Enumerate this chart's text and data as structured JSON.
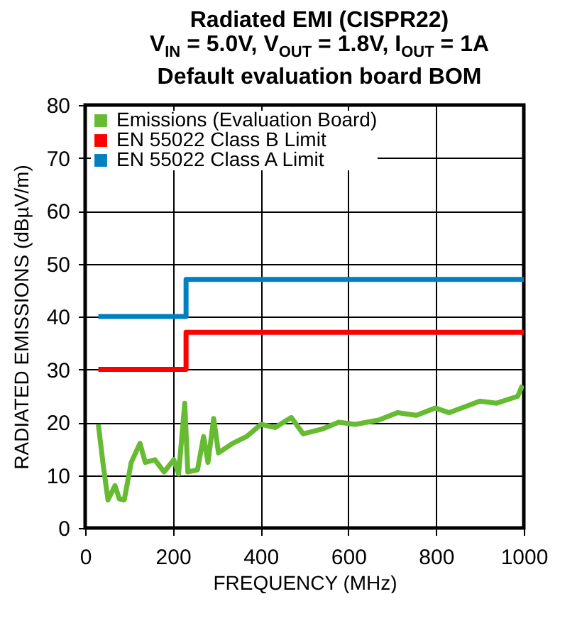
{
  "chart_data": {
    "type": "line",
    "title": "Radiated EMI (CISPR22)\nV$_{IN}$ = 5.0V, V$_{OUT}$ = 1.8V, I$_{OUT}$ = 1A\nDefault evaluation board BOM",
    "xlabel": "FREQUENCY (MHz)",
    "ylabel": "RADIATED EMISSIONS (dBµV/m)",
    "xlim": [
      0,
      1000
    ],
    "xticks": [
      0,
      200,
      400,
      600,
      800,
      {
        "value": 1000,
        "label": "1000"
      }
    ],
    "ylim": [
      0,
      80
    ],
    "yticks": [
      0,
      10,
      20,
      30,
      40,
      50,
      60,
      70,
      80
    ],
    "grid": true,
    "legend": "top left",
    "series": [
      {
        "name": "Emissions (Evaluation Board)",
        "color": "#66bb33",
        "x": [
          30,
          41,
          52,
          68,
          78,
          89,
          105,
          125,
          137,
          159,
          180,
          202,
          213,
          227,
          234,
          256,
          270,
          280,
          293,
          304,
          336,
          368,
          401,
          433,
          470,
          497,
          540,
          578,
          616,
          669,
          712,
          755,
          798,
          830,
          900,
          938,
          986,
          997
        ],
        "values": [
          19.6,
          12,
          5.3,
          8,
          5.5,
          5.3,
          12.4,
          16,
          12.4,
          12.9,
          10.6,
          12.9,
          10.2,
          23.6,
          10.6,
          11,
          17.3,
          12.4,
          20.7,
          14.2,
          16,
          17.3,
          19.6,
          19,
          20.9,
          17.8,
          18.7,
          20,
          19.6,
          20.4,
          21.8,
          21.3,
          22.7,
          21.8,
          24,
          23.6,
          24.9,
          27
        ]
      },
      {
        "name": "EN 55022 Class B Limit",
        "color": "#ff0000",
        "type": "step",
        "x": [
          30,
          230,
          1000
        ],
        "values": [
          30,
          37,
          37
        ]
      },
      {
        "name": "EN 55022 Class A Limit",
        "color": "#0080c0",
        "type": "step",
        "x": [
          30,
          230,
          1000
        ],
        "values": [
          40,
          47,
          47
        ]
      }
    ]
  }
}
